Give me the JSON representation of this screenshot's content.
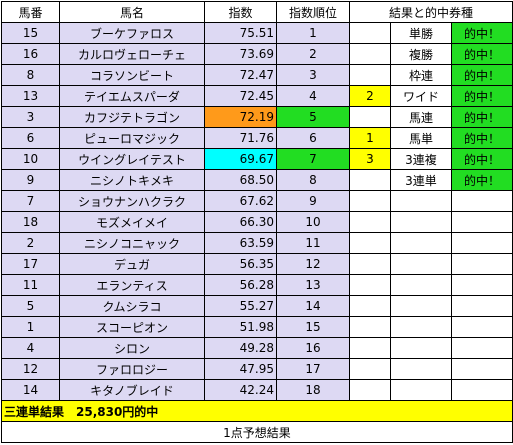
{
  "header": {
    "umaban": "馬番",
    "bamei": "馬名",
    "shisu": "指数",
    "rank": "指数順位",
    "result": "結果と的中券種"
  },
  "rows": [
    {
      "umaban": "15",
      "bamei": "ブーケファロス",
      "shisu": "75.51",
      "rank": "1",
      "res_num": "",
      "res_type": "単勝",
      "res_hit": "的中！"
    },
    {
      "umaban": "16",
      "bamei": "カルロヴェローチェ",
      "shisu": "73.69",
      "rank": "2",
      "res_num": "",
      "res_type": "複勝",
      "res_hit": "的中！"
    },
    {
      "umaban": "8",
      "bamei": "コラソンビート",
      "shisu": "72.47",
      "rank": "3",
      "res_num": "",
      "res_type": "枠連",
      "res_hit": "的中！"
    },
    {
      "umaban": "13",
      "bamei": "テイエムスパーダ",
      "shisu": "72.45",
      "rank": "4",
      "res_num": "2",
      "res_type": "ワイド",
      "res_hit": "的中！"
    },
    {
      "umaban": "3",
      "bamei": "カフジテトラゴン",
      "shisu": "72.19",
      "rank": "5",
      "res_num": "",
      "res_type": "馬連",
      "res_hit": "的中！"
    },
    {
      "umaban": "6",
      "bamei": "ピューロマジック",
      "shisu": "71.76",
      "rank": "6",
      "res_num": "1",
      "res_type": "馬単",
      "res_hit": "的中！"
    },
    {
      "umaban": "10",
      "bamei": "ウイングレイテスト",
      "shisu": "69.67",
      "rank": "7",
      "res_num": "3",
      "res_type": "3連複",
      "res_hit": "的中！"
    },
    {
      "umaban": "9",
      "bamei": "ニシノトキメキ",
      "shisu": "68.50",
      "rank": "8",
      "res_num": "",
      "res_type": "3連単",
      "res_hit": "的中！"
    },
    {
      "umaban": "7",
      "bamei": "ショウナンハクラク",
      "shisu": "67.62",
      "rank": "9",
      "res_num": "",
      "res_type": "",
      "res_hit": ""
    },
    {
      "umaban": "18",
      "bamei": "モズメイメイ",
      "shisu": "66.30",
      "rank": "10",
      "res_num": "",
      "res_type": "",
      "res_hit": ""
    },
    {
      "umaban": "2",
      "bamei": "ニシノコニャック",
      "shisu": "63.59",
      "rank": "11",
      "res_num": "",
      "res_type": "",
      "res_hit": ""
    },
    {
      "umaban": "17",
      "bamei": "デュガ",
      "shisu": "56.35",
      "rank": "12",
      "res_num": "",
      "res_type": "",
      "res_hit": ""
    },
    {
      "umaban": "11",
      "bamei": "エランティス",
      "shisu": "56.28",
      "rank": "13",
      "res_num": "",
      "res_type": "",
      "res_hit": ""
    },
    {
      "umaban": "5",
      "bamei": "クムシラコ",
      "shisu": "55.27",
      "rank": "14",
      "res_num": "",
      "res_type": "",
      "res_hit": ""
    },
    {
      "umaban": "1",
      "bamei": "スコーピオン",
      "shisu": "51.98",
      "rank": "15",
      "res_num": "",
      "res_type": "",
      "res_hit": ""
    },
    {
      "umaban": "4",
      "bamei": "シロン",
      "shisu": "49.28",
      "rank": "16",
      "res_num": "",
      "res_type": "",
      "res_hit": ""
    },
    {
      "umaban": "12",
      "bamei": "ファロロジー",
      "shisu": "47.95",
      "rank": "17",
      "res_num": "",
      "res_type": "",
      "res_hit": ""
    },
    {
      "umaban": "14",
      "bamei": "キタノブレイド",
      "shisu": "42.24",
      "rank": "18",
      "res_num": "",
      "res_type": "",
      "res_hit": ""
    }
  ],
  "summary": "三連単結果　25,830円的中",
  "footer": "1点予想結果",
  "colors": {
    "lavender": "#ddd9f3",
    "orange": "#ff9a1a",
    "green": "#22dd22",
    "cyan": "#00ffff",
    "yellow": "#ffff00"
  }
}
